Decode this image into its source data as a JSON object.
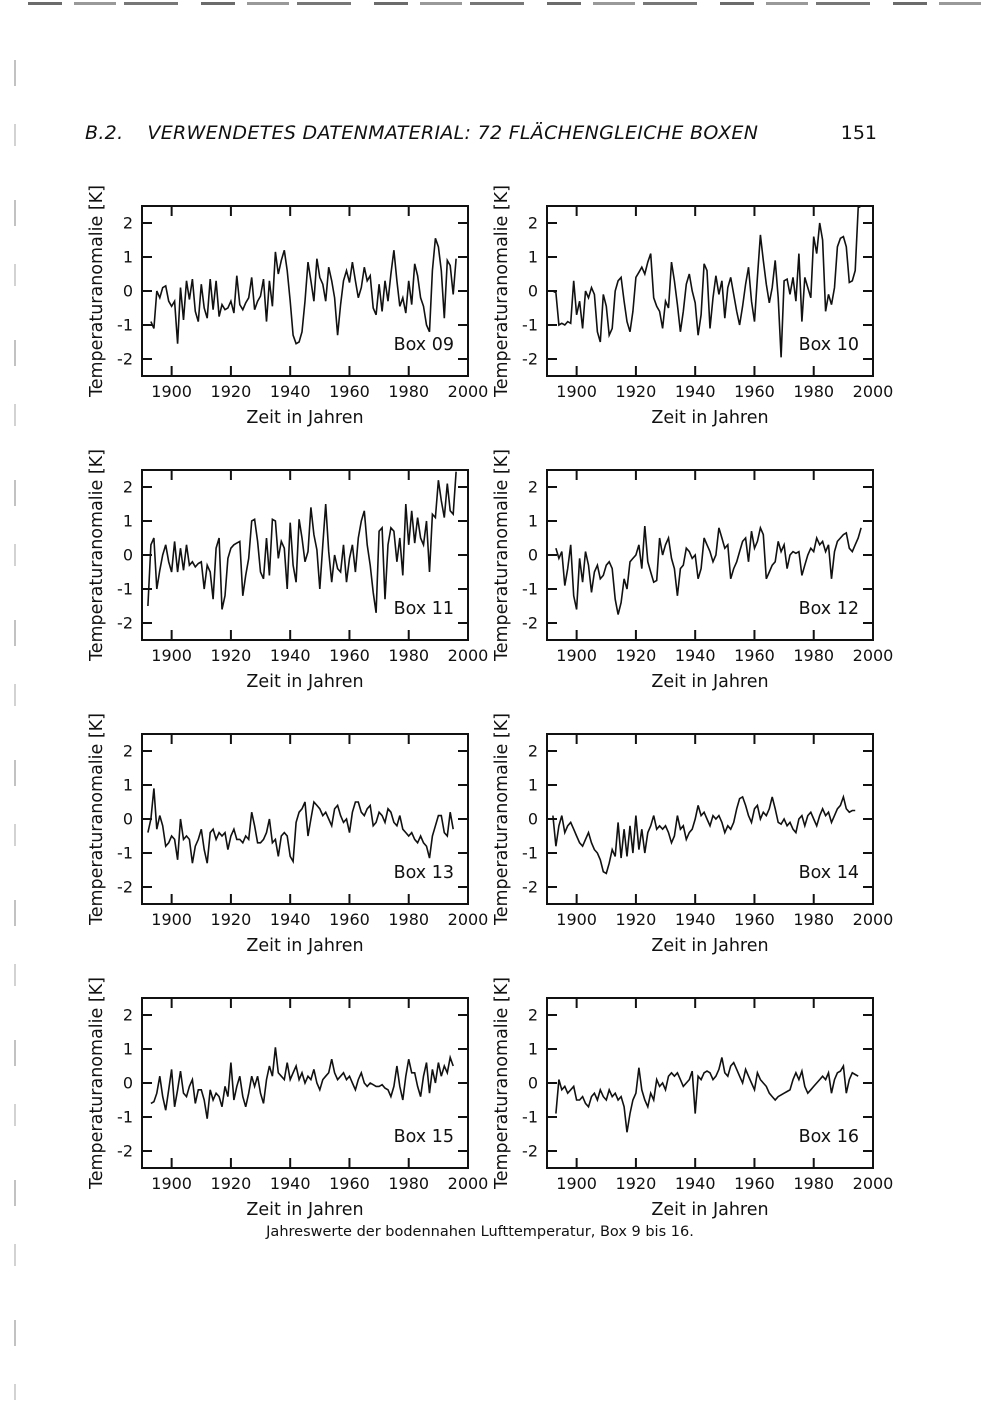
{
  "page": {
    "header": {
      "section": "B.2.",
      "title": "VERWENDETES DATENMATERIAL: 72 FLÄCHENGLEICHE BOXEN",
      "page_number": "151"
    },
    "caption": "Jahreswerte der bodennahen Lufttemperatur, Box 9 bis 16."
  },
  "chart_data": {
    "type": "line",
    "line_color": "#111111",
    "axes": {
      "xlim": [
        1890,
        2000
      ],
      "ylim": [
        -2.5,
        2.5
      ],
      "xticks": [
        1900,
        1920,
        1940,
        1960,
        1980,
        2000
      ],
      "yticks": [
        2,
        1,
        0,
        -1,
        -2
      ],
      "grid": false
    },
    "charts": [
      {
        "box_label": "Box 09",
        "xlabel": "Zeit in Jahren",
        "ylabel": "Temperaturanomalie [K]",
        "start_year": 1893,
        "values": [
          -0.9,
          -1.1,
          0.0,
          -0.2,
          0.1,
          0.15,
          -0.3,
          -0.45,
          -0.3,
          -1.55,
          0.1,
          -0.85,
          0.3,
          -0.25,
          0.35,
          -0.6,
          -0.9,
          0.2,
          -0.5,
          -0.8,
          0.35,
          -0.55,
          0.3,
          -0.75,
          -0.4,
          -0.55,
          -0.5,
          -0.3,
          -0.65,
          0.45,
          -0.4,
          -0.55,
          -0.35,
          -0.2,
          0.4,
          -0.55,
          -0.3,
          -0.15,
          0.35,
          -0.9,
          0.3,
          -0.45,
          1.15,
          0.5,
          0.9,
          1.2,
          0.6,
          -0.3,
          -1.3,
          -1.55,
          -1.5,
          -1.2,
          -0.3,
          0.85,
          0.3,
          -0.3,
          0.95,
          0.4,
          0.2,
          -0.3,
          0.7,
          0.3,
          -0.2,
          -1.3,
          -0.4,
          0.3,
          0.6,
          0.25,
          0.85,
          0.3,
          -0.2,
          0.1,
          0.7,
          0.3,
          0.45,
          -0.5,
          -0.7,
          0.2,
          -0.6,
          0.3,
          -0.3,
          0.5,
          1.2,
          0.3,
          -0.45,
          -0.2,
          -0.65,
          0.3,
          -0.4,
          0.8,
          0.45,
          -0.2,
          -0.45,
          -1.0,
          -1.2,
          0.6,
          1.55,
          1.3,
          0.6,
          -0.8,
          0.9,
          0.75,
          -0.1,
          0.95
        ]
      },
      {
        "box_label": "Box 10",
        "xlabel": "Zeit in Jahren",
        "ylabel": "Temperaturanomalie [K]",
        "start_year": 1892,
        "values": [
          0.0,
          -0.05,
          -1.0,
          -0.95,
          -1.0,
          -0.9,
          -0.95,
          0.3,
          -0.7,
          -0.3,
          -1.1,
          0.0,
          -0.2,
          0.1,
          -0.1,
          -1.2,
          -1.5,
          -0.1,
          -0.45,
          -1.3,
          -1.1,
          0.0,
          0.3,
          0.4,
          -0.3,
          -0.9,
          -1.2,
          -0.6,
          0.4,
          0.55,
          0.7,
          0.5,
          0.85,
          1.1,
          -0.2,
          -0.45,
          -0.6,
          -1.1,
          -0.3,
          -0.5,
          0.85,
          0.3,
          -0.4,
          -1.2,
          -0.6,
          0.2,
          0.5,
          0.0,
          -0.35,
          -1.3,
          -0.7,
          0.8,
          0.6,
          -1.1,
          -0.2,
          0.45,
          -0.1,
          0.3,
          -0.8,
          0.1,
          0.4,
          -0.1,
          -0.6,
          -1.0,
          -0.45,
          0.2,
          0.7,
          -0.3,
          -0.9,
          0.4,
          1.65,
          0.9,
          0.2,
          -0.35,
          0.1,
          0.9,
          -0.2,
          -1.95,
          0.3,
          0.35,
          -0.1,
          0.4,
          -0.3,
          1.1,
          -0.9,
          0.4,
          0.1,
          -0.2,
          1.6,
          1.1,
          2.0,
          1.5,
          -0.6,
          -0.1,
          -0.4,
          0.1,
          1.3,
          1.55,
          1.6,
          1.3,
          0.25,
          0.3,
          0.6,
          2.45,
          2.55
        ]
      },
      {
        "box_label": "Box 11",
        "xlabel": "Zeit in Jahren",
        "ylabel": "Temperaturanomalie [K]",
        "start_year": 1892,
        "values": [
          -1.5,
          0.3,
          0.5,
          -1.0,
          -0.45,
          0.0,
          0.3,
          -0.2,
          -0.5,
          0.4,
          -0.5,
          0.2,
          -0.45,
          0.3,
          -0.3,
          -0.2,
          -0.35,
          -0.25,
          -0.2,
          -1.0,
          -0.3,
          -0.5,
          -1.3,
          0.2,
          0.5,
          -1.6,
          -1.2,
          -0.1,
          0.2,
          0.3,
          0.35,
          0.4,
          -1.2,
          -0.6,
          -0.1,
          1.0,
          1.05,
          0.4,
          -0.5,
          -0.7,
          0.5,
          -0.6,
          1.05,
          1.0,
          -0.1,
          0.4,
          0.2,
          -1.0,
          0.95,
          -0.3,
          -0.8,
          1.05,
          0.5,
          -0.2,
          0.1,
          1.4,
          0.6,
          0.15,
          -1.0,
          0.3,
          1.5,
          0.1,
          -0.8,
          0.0,
          -0.4,
          -0.5,
          0.3,
          -0.8,
          -0.1,
          0.3,
          -0.5,
          0.5,
          1.0,
          1.3,
          0.3,
          -0.3,
          -1.1,
          -1.7,
          0.7,
          0.8,
          -1.3,
          0.3,
          0.8,
          0.7,
          -0.2,
          0.5,
          -0.6,
          1.5,
          0.3,
          1.3,
          0.35,
          1.1,
          0.5,
          0.3,
          1.0,
          -0.5,
          1.2,
          1.1,
          2.2,
          1.6,
          1.1,
          2.1,
          1.3,
          1.2,
          2.45
        ]
      },
      {
        "box_label": "Box 12",
        "xlabel": "Zeit in Jahren",
        "ylabel": "Temperaturanomalie [K]",
        "start_year": 1893,
        "values": [
          0.2,
          -0.1,
          0.1,
          -0.9,
          -0.4,
          0.3,
          -1.2,
          -1.6,
          -0.1,
          -0.8,
          0.1,
          -0.3,
          -1.1,
          -0.5,
          -0.3,
          -0.7,
          -0.6,
          -0.3,
          -0.2,
          -0.4,
          -1.3,
          -1.75,
          -1.4,
          -0.7,
          -1.0,
          -0.2,
          -0.1,
          0.0,
          0.3,
          -0.4,
          0.85,
          -0.2,
          -0.5,
          -0.8,
          -0.75,
          0.5,
          0.0,
          0.3,
          0.5,
          -0.1,
          -0.4,
          -1.2,
          -0.4,
          -0.3,
          0.2,
          0.1,
          -0.1,
          0.0,
          -0.7,
          -0.4,
          0.5,
          0.3,
          0.1,
          -0.2,
          0.0,
          0.8,
          0.5,
          0.2,
          0.3,
          -0.7,
          -0.4,
          -0.2,
          0.1,
          0.4,
          0.5,
          -0.2,
          0.7,
          0.2,
          0.4,
          0.8,
          0.6,
          -0.7,
          -0.5,
          -0.3,
          -0.2,
          0.4,
          0.1,
          0.3,
          -0.4,
          0.0,
          0.1,
          0.05,
          0.1,
          -0.6,
          -0.3,
          0.0,
          0.2,
          0.1,
          0.5,
          0.3,
          0.4,
          0.1,
          0.3,
          -0.7,
          0.1,
          0.4,
          0.5,
          0.6,
          0.65,
          0.2,
          0.1,
          0.3,
          0.5,
          0.8
        ]
      },
      {
        "box_label": "Box 13",
        "xlabel": "Zeit in Jahren",
        "ylabel": "Temperaturanomalie [K]",
        "start_year": 1892,
        "values": [
          -0.4,
          0.0,
          0.9,
          -0.3,
          0.1,
          -0.2,
          -0.8,
          -0.7,
          -0.5,
          -0.6,
          -1.2,
          0.0,
          -0.6,
          -0.5,
          -0.6,
          -1.3,
          -0.8,
          -0.6,
          -0.3,
          -0.9,
          -1.3,
          -0.4,
          -0.3,
          -0.6,
          -0.4,
          -0.5,
          -0.4,
          -0.9,
          -0.5,
          -0.3,
          -0.6,
          -0.6,
          -0.7,
          -0.5,
          -0.6,
          0.2,
          -0.2,
          -0.7,
          -0.7,
          -0.6,
          -0.4,
          0.0,
          -0.7,
          -0.6,
          -1.1,
          -0.5,
          -0.4,
          -0.5,
          -1.1,
          -1.25,
          -0.1,
          0.2,
          0.3,
          0.5,
          -0.5,
          0.0,
          0.5,
          0.4,
          0.3,
          0.1,
          0.2,
          0.0,
          -0.2,
          0.3,
          0.4,
          0.1,
          -0.1,
          0.0,
          -0.4,
          0.2,
          0.5,
          0.5,
          0.2,
          0.1,
          0.3,
          0.4,
          -0.2,
          -0.1,
          0.2,
          0.1,
          -0.1,
          0.3,
          0.2,
          -0.1,
          -0.2,
          0.1,
          -0.3,
          -0.4,
          -0.5,
          -0.4,
          -0.6,
          -0.7,
          -0.5,
          -0.7,
          -0.8,
          -1.15,
          -0.5,
          -0.2,
          0.1,
          0.1,
          -0.4,
          -0.5,
          0.2,
          -0.3
        ]
      },
      {
        "box_label": "Box 14",
        "xlabel": "Zeit in Jahren",
        "ylabel": "Temperaturanomalie [K]",
        "start_year": 1892,
        "values": [
          0.1,
          -0.8,
          -0.2,
          0.1,
          -0.4,
          -0.2,
          -0.1,
          -0.3,
          -0.5,
          -0.7,
          -0.8,
          -0.6,
          -0.4,
          -0.7,
          -0.9,
          -1.0,
          -1.2,
          -1.55,
          -1.6,
          -1.3,
          -0.9,
          -1.1,
          -0.1,
          -1.15,
          -0.3,
          -1.1,
          -0.2,
          -1.0,
          0.1,
          -0.9,
          -0.3,
          -1.0,
          -0.4,
          -0.2,
          0.1,
          -0.3,
          -0.2,
          -0.3,
          -0.2,
          -0.4,
          -0.7,
          -0.5,
          0.1,
          -0.3,
          -0.2,
          -0.6,
          -0.4,
          -0.3,
          0.0,
          0.4,
          0.1,
          0.2,
          0.0,
          -0.2,
          0.1,
          0.0,
          0.1,
          -0.1,
          -0.4,
          -0.2,
          -0.3,
          -0.1,
          0.3,
          0.6,
          0.65,
          0.4,
          0.1,
          -0.1,
          0.3,
          0.4,
          0.0,
          0.2,
          0.1,
          0.3,
          0.65,
          0.3,
          -0.1,
          -0.15,
          0.0,
          -0.2,
          -0.1,
          -0.3,
          -0.4,
          0.0,
          0.1,
          -0.2,
          0.1,
          0.2,
          0.0,
          -0.2,
          0.1,
          0.3,
          0.1,
          0.2,
          -0.1,
          0.1,
          0.3,
          0.4,
          0.65,
          0.3,
          0.2,
          0.25,
          0.25
        ]
      },
      {
        "box_label": "Box 15",
        "xlabel": "Zeit in Jahren",
        "ylabel": "Temperaturanomalie [K]",
        "start_year": 1893,
        "values": [
          -0.6,
          -0.55,
          -0.3,
          0.2,
          -0.4,
          -0.8,
          -0.2,
          0.4,
          -0.7,
          -0.2,
          0.35,
          -0.3,
          -0.4,
          -0.1,
          0.1,
          -0.6,
          -0.2,
          -0.2,
          -0.5,
          -1.05,
          -0.2,
          -0.5,
          -0.3,
          -0.4,
          -0.7,
          -0.1,
          -0.4,
          0.6,
          -0.5,
          -0.1,
          0.2,
          -0.4,
          -0.7,
          -0.3,
          0.2,
          -0.1,
          0.2,
          -0.3,
          -0.6,
          0.1,
          0.5,
          0.2,
          1.05,
          0.3,
          0.2,
          0.1,
          0.6,
          0.1,
          0.3,
          0.5,
          0.1,
          0.3,
          0.0,
          0.2,
          0.1,
          0.4,
          0.0,
          -0.2,
          0.1,
          0.2,
          0.3,
          0.7,
          0.3,
          0.1,
          0.2,
          0.3,
          0.1,
          0.2,
          0.0,
          -0.2,
          0.1,
          0.3,
          0.0,
          -0.1,
          0.0,
          -0.05,
          -0.1,
          -0.1,
          -0.05,
          -0.15,
          -0.2,
          -0.4,
          -0.1,
          0.5,
          -0.1,
          -0.5,
          0.2,
          0.7,
          0.3,
          0.3,
          -0.1,
          -0.4,
          0.2,
          0.6,
          -0.3,
          0.4,
          0.0,
          0.6,
          0.2,
          0.5,
          0.3,
          0.75,
          0.5
        ]
      },
      {
        "box_label": "Box 16",
        "xlabel": "Zeit in Jahren",
        "ylabel": "Temperaturanomalie [K]",
        "start_year": 1893,
        "values": [
          -0.9,
          0.1,
          -0.2,
          -0.1,
          -0.3,
          -0.2,
          -0.1,
          -0.5,
          -0.5,
          -0.4,
          -0.6,
          -0.7,
          -0.4,
          -0.3,
          -0.5,
          -0.2,
          -0.4,
          -0.5,
          -0.2,
          -0.4,
          -0.3,
          -0.5,
          -0.4,
          -0.7,
          -1.45,
          -0.9,
          -0.5,
          -0.3,
          0.45,
          -0.2,
          -0.5,
          -0.7,
          -0.3,
          -0.5,
          0.1,
          -0.1,
          0.0,
          -0.2,
          0.2,
          0.3,
          0.2,
          0.3,
          0.1,
          -0.1,
          0.0,
          0.1,
          0.35,
          -0.9,
          0.2,
          0.1,
          0.3,
          0.35,
          0.3,
          0.1,
          0.2,
          0.4,
          0.75,
          0.3,
          0.2,
          0.5,
          0.6,
          0.4,
          0.2,
          0.0,
          0.4,
          0.2,
          0.0,
          -0.2,
          0.3,
          0.1,
          0.0,
          -0.1,
          -0.3,
          -0.4,
          -0.5,
          -0.4,
          -0.35,
          -0.3,
          -0.25,
          -0.2,
          0.1,
          0.3,
          0.1,
          0.35,
          -0.1,
          -0.3,
          -0.2,
          -0.1,
          0.0,
          0.1,
          0.2,
          0.1,
          0.3,
          -0.3,
          0.1,
          0.3,
          0.35,
          0.5,
          -0.3,
          0.1,
          0.3,
          0.25,
          0.2
        ]
      }
    ]
  }
}
